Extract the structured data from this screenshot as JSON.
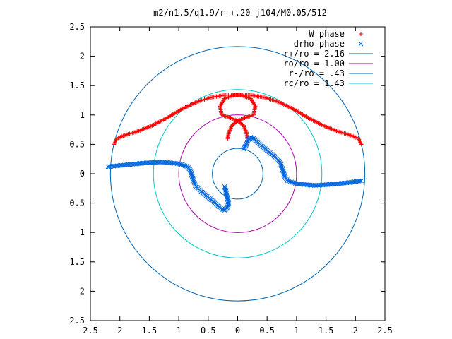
{
  "chart_data": {
    "type": "scatter",
    "title": "m2/n1.5/q1.9/r-+.20-j104/M0.05/512",
    "xlim": [
      -2.5,
      2.5
    ],
    "ylim": [
      -2.5,
      2.5
    ],
    "x_ticks": [
      -2.5,
      -2,
      -1.5,
      -1,
      -0.5,
      0,
      0.5,
      1,
      1.5,
      2,
      2.5
    ],
    "y_ticks": [
      2.5,
      2,
      1.5,
      1,
      0.5,
      0,
      -0.5,
      -1,
      -1.5,
      -2,
      -2.5
    ],
    "x_tick_labels": [
      "2.5",
      "2",
      "1.5",
      "1",
      "0.5",
      "0",
      "0.5",
      "1",
      "1.5",
      "2",
      "2.5"
    ],
    "y_tick_labels": [
      "2.5",
      "2",
      "1.5",
      "1",
      "0.5",
      "0",
      "0.5",
      "1",
      "1.5",
      "2",
      "2.5"
    ],
    "legend_position": "top-right",
    "grid": false,
    "series": [
      {
        "name": "W phase",
        "marker": "+",
        "color": "#ff0000",
        "arms": [
          [
            [
              -2.1,
              0.5
            ],
            [
              -2.05,
              0.6
            ],
            [
              -1.9,
              0.66
            ],
            [
              -1.7,
              0.72
            ],
            [
              -1.45,
              0.82
            ],
            [
              -1.2,
              0.95
            ],
            [
              -0.95,
              1.1
            ],
            [
              -0.7,
              1.22
            ],
            [
              -0.45,
              1.3
            ],
            [
              -0.2,
              1.34
            ],
            [
              0.05,
              1.34
            ],
            [
              0.22,
              1.28
            ],
            [
              0.3,
              1.15
            ],
            [
              0.27,
              1.0
            ],
            [
              0.12,
              0.95
            ],
            [
              0.0,
              0.9
            ],
            [
              -0.1,
              0.82
            ],
            [
              -0.15,
              0.7
            ],
            [
              -0.17,
              0.6
            ]
          ],
          [
            [
              2.1,
              0.5
            ],
            [
              2.05,
              0.6
            ],
            [
              1.9,
              0.66
            ],
            [
              1.7,
              0.72
            ],
            [
              1.45,
              0.82
            ],
            [
              1.2,
              0.95
            ],
            [
              0.95,
              1.1
            ],
            [
              0.7,
              1.22
            ],
            [
              0.45,
              1.3
            ],
            [
              0.2,
              1.34
            ],
            [
              -0.05,
              1.34
            ],
            [
              -0.22,
              1.28
            ],
            [
              -0.3,
              1.15
            ],
            [
              -0.27,
              1.0
            ],
            [
              -0.12,
              0.95
            ],
            [
              0.0,
              0.9
            ],
            [
              0.1,
              0.82
            ],
            [
              0.15,
              0.7
            ],
            [
              0.17,
              0.6
            ]
          ]
        ]
      },
      {
        "name": "drho phase",
        "marker": "x",
        "color": "#0066dd",
        "arms": [
          [
            [
              -2.2,
              0.12
            ],
            [
              -1.9,
              0.15
            ],
            [
              -1.6,
              0.18
            ],
            [
              -1.3,
              0.2
            ],
            [
              -1.0,
              0.17
            ],
            [
              -0.85,
              0.12
            ],
            [
              -0.8,
              0.05
            ],
            [
              -0.77,
              -0.05
            ],
            [
              -0.72,
              -0.2
            ],
            [
              -0.62,
              -0.3
            ],
            [
              -0.5,
              -0.4
            ],
            [
              -0.4,
              -0.48
            ],
            [
              -0.32,
              -0.56
            ],
            [
              -0.27,
              -0.6
            ],
            [
              -0.22,
              -0.62
            ],
            [
              -0.18,
              -0.58
            ],
            [
              -0.15,
              -0.5
            ],
            [
              -0.18,
              -0.4
            ],
            [
              -0.2,
              -0.3
            ],
            [
              -0.22,
              -0.22
            ]
          ],
          [
            [
              2.1,
              -0.12
            ],
            [
              1.9,
              -0.15
            ],
            [
              1.6,
              -0.18
            ],
            [
              1.3,
              -0.2
            ],
            [
              1.0,
              -0.17
            ],
            [
              0.85,
              -0.12
            ],
            [
              0.8,
              -0.05
            ],
            [
              0.77,
              0.05
            ],
            [
              0.72,
              0.2
            ],
            [
              0.62,
              0.3
            ],
            [
              0.5,
              0.4
            ],
            [
              0.4,
              0.48
            ],
            [
              0.32,
              0.56
            ],
            [
              0.27,
              0.6
            ],
            [
              0.22,
              0.62
            ],
            [
              0.18,
              0.58
            ],
            [
              0.15,
              0.5
            ],
            [
              0.12,
              0.45
            ],
            [
              0.1,
              0.42
            ]
          ]
        ]
      }
    ],
    "circles": [
      {
        "label": "r+/ro = 2.16",
        "radius": 2.16,
        "color": "#0066b3"
      },
      {
        "label": "ro/ro = 1.00",
        "radius": 1.0,
        "color": "#aa00aa"
      },
      {
        "label": "r-/ro = .43",
        "radius": 0.43,
        "color": "#0066b3"
      },
      {
        "label": "rc/ro = 1.43",
        "radius": 1.43,
        "color": "#00c8c8"
      }
    ]
  }
}
